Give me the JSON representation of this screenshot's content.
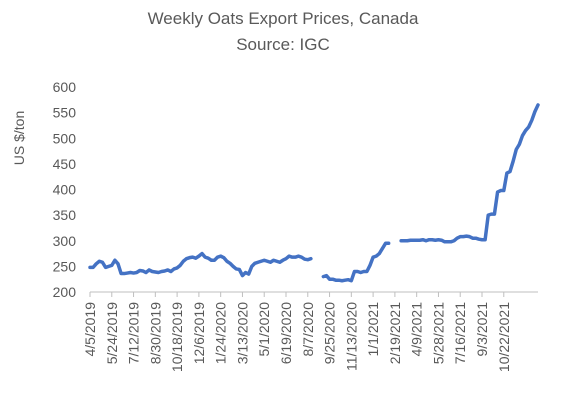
{
  "chart_data": {
    "type": "line",
    "title": "Weekly Oats Export Prices, Canada",
    "subtitle": "Source: IGC",
    "ylabel": "US $/ton",
    "xlabel": "",
    "ylim": [
      200,
      600
    ],
    "y_ticks": [
      200,
      250,
      300,
      350,
      400,
      450,
      500,
      550,
      600
    ],
    "x_tick_labels": [
      "4/5/2019",
      "5/24/2019",
      "7/12/2019",
      "8/30/2019",
      "10/18/2019",
      "12/6/2019",
      "1/24/2020",
      "3/13/2020",
      "5/1/2020",
      "6/19/2020",
      "8/7/2020",
      "9/25/2020",
      "11/13/2020",
      "1/1/2021",
      "2/19/2021",
      "4/9/2021",
      "5/28/2021",
      "7/16/2021",
      "9/3/2021",
      "10/22/2021"
    ],
    "grid": false,
    "legend": "none",
    "line_color": "#4472C4",
    "series": [
      {
        "values": [
          248,
          248,
          255,
          260,
          258,
          248,
          250,
          252,
          262,
          255,
          236,
          236,
          237,
          238,
          237,
          238,
          242,
          241,
          238,
          243,
          240,
          239,
          238,
          240,
          241,
          243,
          240,
          245,
          247,
          252,
          260,
          265,
          267,
          268,
          266,
          270,
          275,
          268,
          266,
          262,
          262,
          268,
          270,
          267,
          260,
          256,
          250,
          245,
          244,
          232,
          238,
          235,
          250,
          256,
          258,
          260,
          262,
          260,
          258,
          262,
          260,
          258,
          262,
          265,
          270,
          268,
          268,
          270,
          268,
          264,
          263,
          265,
          null,
          null,
          null,
          230,
          232,
          225,
          225,
          223,
          223,
          222,
          223,
          224,
          222,
          240,
          240,
          238,
          240,
          240,
          252,
          268,
          270,
          275,
          285,
          295,
          295,
          null,
          null,
          null,
          300,
          300,
          300,
          301,
          301,
          301,
          301,
          302,
          300,
          302,
          302,
          301,
          302,
          301,
          298,
          298,
          298,
          300,
          305,
          308,
          308,
          309,
          308,
          305,
          305,
          303,
          302,
          302,
          350,
          352,
          352,
          395,
          398,
          398,
          432,
          435,
          455,
          478,
          488,
          505,
          515,
          522,
          535,
          552,
          565
        ]
      }
    ]
  }
}
